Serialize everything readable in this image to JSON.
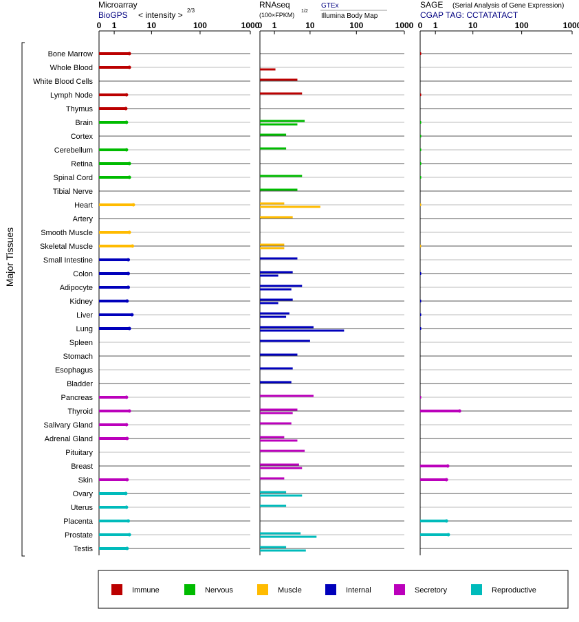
{
  "y_axis_label": "Major Tissues",
  "tissues": [
    "Bone Marrow",
    "Whole Blood",
    "White Blood Cells",
    "Lymph Node",
    "Thymus",
    "Brain",
    "Cortex",
    "Cerebellum",
    "Retina",
    "Spinal Cord",
    "Tibial Nerve",
    "Heart",
    "Artery",
    "Smooth Muscle",
    "Skeletal Muscle",
    "Small Intestine",
    "Colon",
    "Adipocyte",
    "Kidney",
    "Liver",
    "Lung",
    "Spleen",
    "Stomach",
    "Esophagus",
    "Bladder",
    "Pancreas",
    "Thyroid",
    "Salivary Gland",
    "Adrenal Gland",
    "Pituitary",
    "Breast",
    "Skin",
    "Ovary",
    "Uterus",
    "Placenta",
    "Prostate",
    "Testis"
  ],
  "tissue_groups": [
    "immune",
    "immune",
    "immune",
    "immune",
    "immune",
    "nervous",
    "nervous",
    "nervous",
    "nervous",
    "nervous",
    "nervous",
    "muscle",
    "muscle",
    "muscle",
    "muscle",
    "internal",
    "internal",
    "internal",
    "internal",
    "internal",
    "internal",
    "internal",
    "internal",
    "internal",
    "internal",
    "secretory",
    "secretory",
    "secretory",
    "secretory",
    "secretory",
    "secretory",
    "secretory",
    "reproductive",
    "reproductive",
    "reproductive",
    "reproductive",
    "reproductive"
  ],
  "colors": {
    "immune": "#bb0000",
    "nervous": "#00bb00",
    "muscle": "#ffbb00",
    "internal": "#0000bb",
    "secretory": "#bb00bb",
    "reproductive": "#00bbbb",
    "link_blue": "#000080"
  },
  "legend": [
    {
      "key": "immune",
      "label": "Immune"
    },
    {
      "key": "nervous",
      "label": "Nervous"
    },
    {
      "key": "muscle",
      "label": "Muscle"
    },
    {
      "key": "internal",
      "label": "Internal"
    },
    {
      "key": "secretory",
      "label": "Secretory"
    },
    {
      "key": "reproductive",
      "label": "Reproductive"
    }
  ],
  "panels": {
    "microarray": {
      "title": "Microarray",
      "source": "BioGPS",
      "scale_label": "< intensity >",
      "scale_exponent": "2/3",
      "ticks": [
        "0",
        "1",
        "10",
        "100",
        "1000"
      ]
    },
    "rnaseq": {
      "title": "RNAseq",
      "scale_label": "(100×FPKM)",
      "scale_exponent": "1/2",
      "source_top": "GTEx",
      "source_bottom": "Illumina Body Map",
      "ticks": [
        "0",
        "1",
        "10",
        "100",
        "1000"
      ]
    },
    "sage": {
      "title": "SAGE",
      "subtitle": "(Serial Analysis of Gene Expression)",
      "tag_label": "CGAP TAG: CCTATATACT",
      "ticks": [
        "0",
        "1",
        "10",
        "100",
        "1000"
      ]
    }
  },
  "chart_data": [
    {
      "type": "bar",
      "name": "Microarray",
      "scale": "log1p",
      "xlim": [
        0,
        1000
      ],
      "categories_ref": "tissues",
      "values": [
        3.0,
        3.0,
        null,
        2.5,
        2.4,
        2.5,
        null,
        2.5,
        3.0,
        3.0,
        null,
        3.8,
        null,
        3.0,
        3.6,
        2.8,
        2.8,
        2.8,
        2.6,
        3.5,
        3.0,
        null,
        null,
        null,
        null,
        2.5,
        3.0,
        2.5,
        2.6,
        null,
        null,
        2.6,
        2.4,
        2.5,
        2.8,
        3.0,
        2.6
      ]
    },
    {
      "type": "bar",
      "name": "RNAseq GTEx",
      "scale": "log1p",
      "xlim": [
        0,
        1000
      ],
      "categories_ref": "tissues",
      "values": [
        null,
        null,
        5.0,
        6.5,
        null,
        7.5,
        2.5,
        2.5,
        null,
        6.5,
        5.0,
        2.2,
        3.8,
        null,
        2.2,
        5.0,
        3.8,
        6.5,
        3.8,
        3.1,
        12,
        10,
        5.0,
        3.8,
        3.5,
        12,
        5.0,
        3.5,
        2.2,
        7.5,
        5.5,
        2.2,
        2.5,
        2.5,
        null,
        6.0,
        2.5
      ]
    },
    {
      "type": "bar",
      "name": "RNAseq Illumina Body Map",
      "scale": "log1p",
      "xlim": [
        0,
        1000
      ],
      "categories_ref": "tissues",
      "values": [
        null,
        1.1,
        null,
        null,
        null,
        5.0,
        null,
        null,
        null,
        null,
        null,
        17,
        null,
        null,
        2.2,
        null,
        1.4,
        3.5,
        1.4,
        2.5,
        55,
        null,
        null,
        null,
        null,
        null,
        3.8,
        null,
        5.0,
        null,
        6.5,
        null,
        6.5,
        null,
        null,
        14,
        8.0
      ]
    },
    {
      "type": "bar",
      "name": "SAGE",
      "scale": "log1p",
      "xlim": [
        0,
        1000
      ],
      "categories_ref": "tissues",
      "values": [
        0.03,
        null,
        null,
        0.03,
        null,
        0.02,
        0.02,
        0.02,
        0.02,
        0.02,
        null,
        0.01,
        null,
        null,
        0.01,
        null,
        0.03,
        null,
        0.03,
        0.03,
        0.03,
        null,
        null,
        null,
        null,
        0.03,
        5.0,
        null,
        null,
        null,
        2.5,
        2.3,
        null,
        null,
        2.3,
        2.6,
        null
      ]
    }
  ]
}
